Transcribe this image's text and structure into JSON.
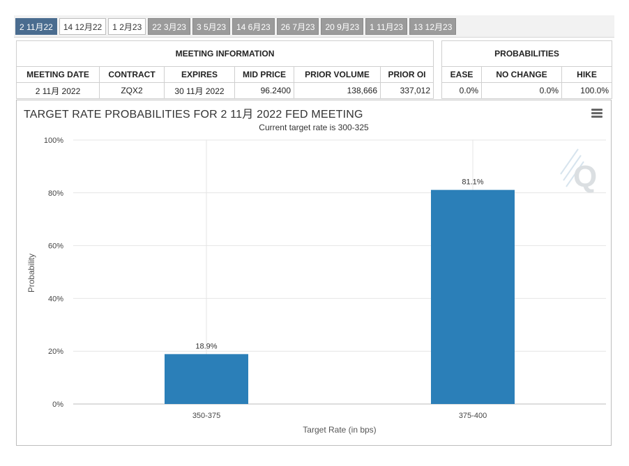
{
  "tabs": [
    {
      "label": "2 11月22",
      "state": "active"
    },
    {
      "label": "14 12月22",
      "state": "light"
    },
    {
      "label": "1 2月23",
      "state": "light"
    },
    {
      "label": "22 3月23",
      "state": "dark"
    },
    {
      "label": "3 5月23",
      "state": "dark"
    },
    {
      "label": "14 6月23",
      "state": "dark"
    },
    {
      "label": "26 7月23",
      "state": "dark"
    },
    {
      "label": "20 9月23",
      "state": "dark"
    },
    {
      "label": "1 11月23",
      "state": "dark"
    },
    {
      "label": "13 12月23",
      "state": "dark"
    }
  ],
  "meeting_info": {
    "heading": "MEETING INFORMATION",
    "columns": [
      "MEETING DATE",
      "CONTRACT",
      "EXPIRES",
      "MID PRICE",
      "PRIOR VOLUME",
      "PRIOR OI"
    ],
    "row": {
      "meeting_date": "2 11月 2022",
      "contract": "ZQX2",
      "expires": "30 11月 2022",
      "mid_price": "96.2400",
      "prior_volume": "138,666",
      "prior_oi": "337,012"
    }
  },
  "probabilities": {
    "heading": "PROBABILITIES",
    "columns": [
      "EASE",
      "NO CHANGE",
      "HIKE"
    ],
    "row": {
      "ease": "0.0%",
      "no_change": "0.0%",
      "hike": "100.0%"
    }
  },
  "chart_data": {
    "type": "bar",
    "title": "TARGET RATE PROBABILITIES FOR 2 11月 2022 FED MEETING",
    "subtitle": "Current target rate is 300-325",
    "xlabel": "Target Rate (in bps)",
    "ylabel": "Probability",
    "categories": [
      "350-375",
      "375-400"
    ],
    "values": [
      18.9,
      81.1
    ],
    "data_labels": [
      "18.9%",
      "81.1%"
    ],
    "ylim": [
      0,
      100
    ],
    "yticks": [
      0,
      20,
      40,
      60,
      80,
      100
    ],
    "ytick_labels": [
      "0%",
      "20%",
      "40%",
      "60%",
      "80%",
      "100%"
    ],
    "bar_color": "#2b7fb8",
    "grid": true
  }
}
